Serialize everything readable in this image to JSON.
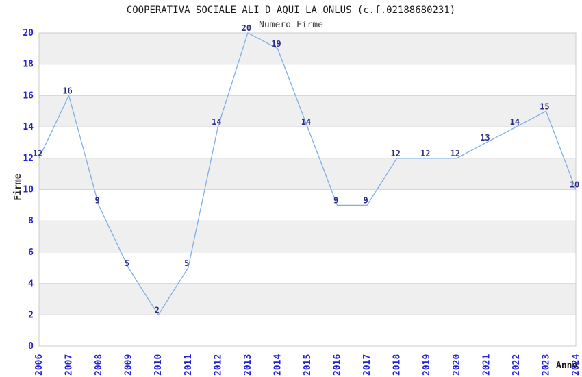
{
  "title": "COOPERATIVA SOCIALE ALI D AQUI LA ONLUS (c.f.02188680231)",
  "subtitle": "Numero Firme",
  "chart_data": {
    "type": "line",
    "title": "COOPERATIVA SOCIALE ALI D AQUI LA ONLUS (c.f.02188680231)",
    "subtitle": "Numero Firme",
    "xlabel": "Anno",
    "ylabel": "Firme",
    "x": [
      2006,
      2007,
      2008,
      2009,
      2010,
      2011,
      2012,
      2013,
      2014,
      2015,
      2016,
      2017,
      2018,
      2019,
      2020,
      2021,
      2022,
      2023,
      2024
    ],
    "values": [
      12,
      16,
      9,
      5,
      2,
      5,
      14,
      20,
      19,
      14,
      9,
      9,
      12,
      12,
      12,
      13,
      14,
      15,
      10
    ],
    "ylim": [
      0,
      20
    ],
    "ytick_step": 2,
    "grid": "horizontal-bands",
    "legend": "none",
    "point_labels_visible": true
  },
  "colors": {
    "background": "#ffffff",
    "band_gray": "#efefef",
    "band_white": "#ffffff",
    "grid_line": "#d6d6d6",
    "plot_border": "#cccccc",
    "series_line": "#7dafe8",
    "point_label": "#2d2d86",
    "tick_label": "#2323d9",
    "title": "#1a1a1a",
    "subtitle": "#404040",
    "axis_title": "#262626"
  }
}
